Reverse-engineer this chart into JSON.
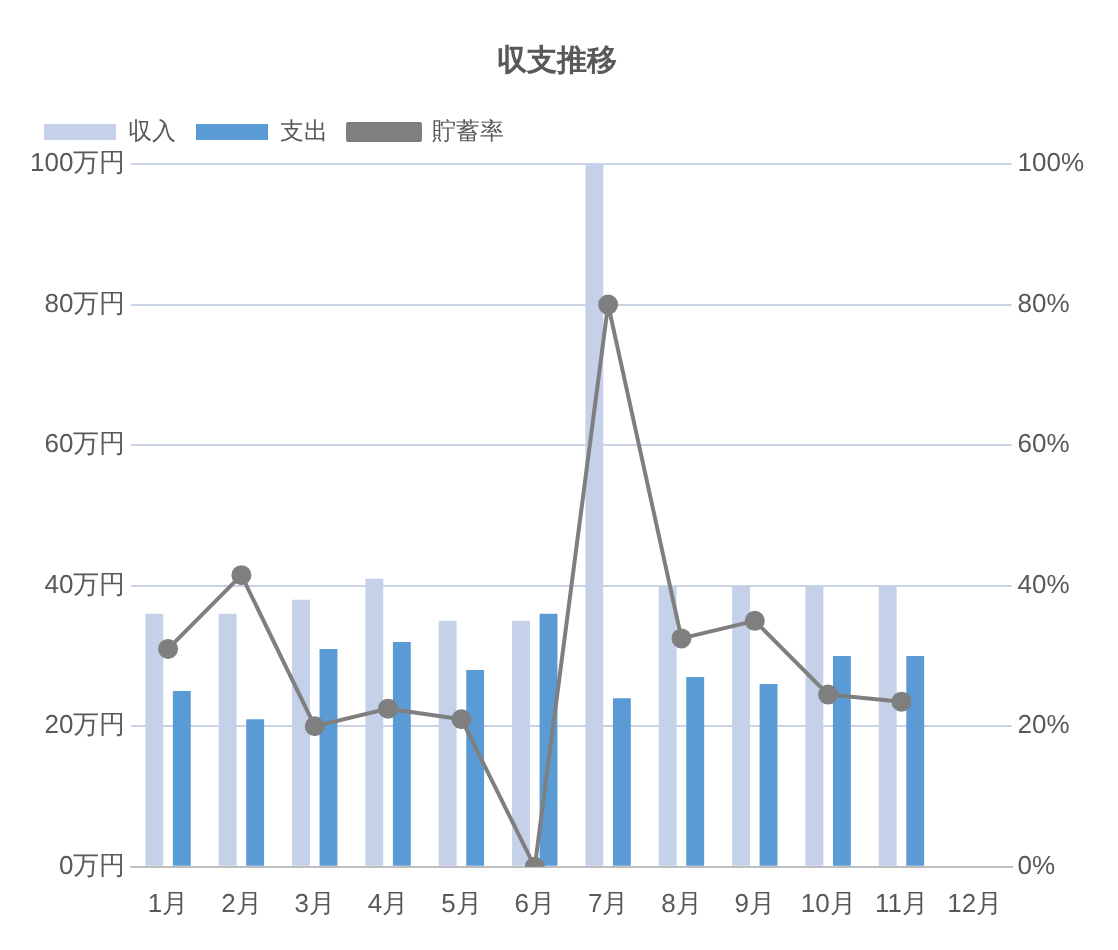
{
  "chart_data": {
    "type": "bar",
    "title": "収支推移",
    "categories": [
      "1月",
      "2月",
      "3月",
      "4月",
      "5月",
      "6月",
      "7月",
      "8月",
      "9月",
      "10月",
      "11月",
      "12月"
    ],
    "series": [
      {
        "name": "収入",
        "color": "#c5d0e9",
        "values": [
          36,
          36,
          38,
          41,
          35,
          35,
          100,
          40,
          40,
          40,
          40,
          null
        ]
      },
      {
        "name": "支出",
        "color": "#5b9bd5",
        "values": [
          25,
          21,
          31,
          32,
          28,
          36,
          24,
          27,
          26,
          30,
          30,
          null
        ]
      },
      {
        "name": "貯蓄率",
        "type": "line",
        "axis": "y2",
        "color": "#7f7f7f",
        "values": [
          31,
          41.5,
          20,
          22.5,
          21,
          0,
          80,
          32.5,
          35,
          24.5,
          23.5,
          null
        ]
      }
    ],
    "ylim": [
      0,
      100
    ],
    "yticks": [
      {
        "value": 0,
        "label": "0万円"
      },
      {
        "value": 20,
        "label": "20万円"
      },
      {
        "value": 40,
        "label": "40万円"
      },
      {
        "value": 60,
        "label": "60万円"
      },
      {
        "value": 80,
        "label": "80万円"
      },
      {
        "value": 100,
        "label": "100万円"
      }
    ],
    "y2lim": [
      0,
      100
    ],
    "y2ticks": [
      {
        "value": 0,
        "label": "0%"
      },
      {
        "value": 20,
        "label": "20%"
      },
      {
        "value": 40,
        "label": "40%"
      },
      {
        "value": 60,
        "label": "60%"
      },
      {
        "value": 80,
        "label": "80%"
      },
      {
        "value": 100,
        "label": "100%"
      }
    ],
    "grid": "y",
    "legend": "top left",
    "marker": "circle",
    "line_style": "solid"
  }
}
